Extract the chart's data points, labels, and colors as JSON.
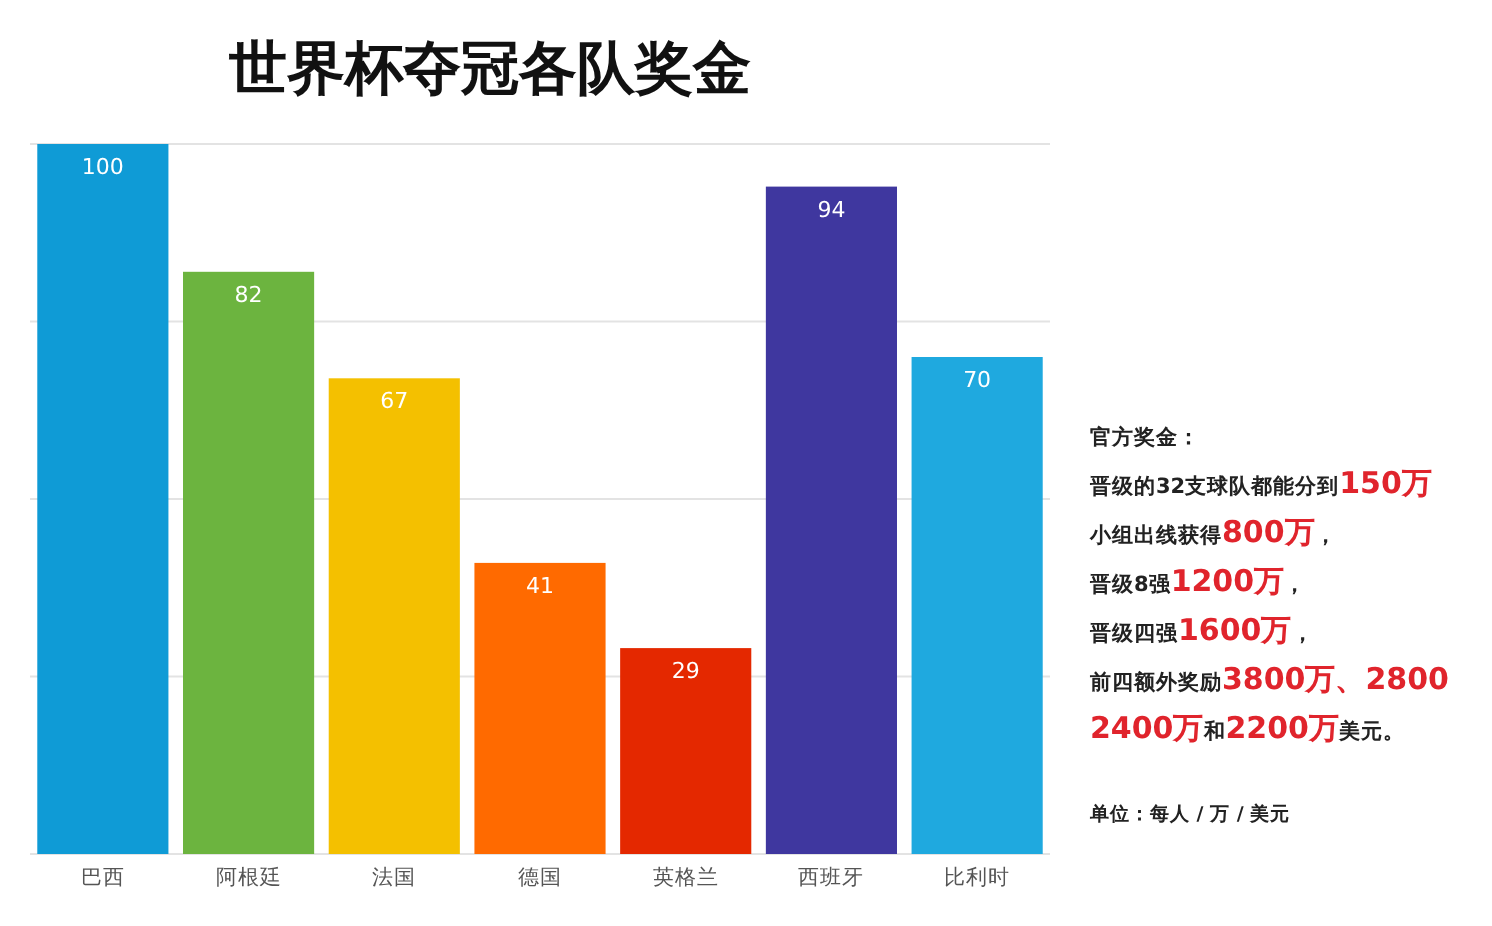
{
  "chart_data": {
    "type": "bar",
    "title": "世界杯夺冠各队奖金",
    "categories": [
      "巴西",
      "阿根廷",
      "法国",
      "德国",
      "英格兰",
      "西班牙",
      "比利时"
    ],
    "values": [
      100,
      82,
      67,
      41,
      29,
      94,
      70
    ],
    "colors": [
      "#0f9bd6",
      "#6cb43f",
      "#f4c000",
      "#ff6a00",
      "#e42800",
      "#3f379f",
      "#1fa9df"
    ],
    "ylim": [
      0,
      100
    ],
    "yticks": [
      {
        "value": 0,
        "label": null
      },
      {
        "value": 25,
        "label": null
      },
      {
        "value": 50,
        "label": null
      },
      {
        "value": 75,
        "label": null
      },
      {
        "value": 100,
        "label": null
      }
    ],
    "grid": "y",
    "tick_labels": "x",
    "data_labels": true,
    "annotations": [
      "官方奖金：",
      "晋级的32支球队都能分到150万",
      "小组出线获得800万，",
      "晋级8强1200万，",
      "晋级四强1600万，",
      "前四额外奖励3800万、2800",
      "2400万和2200万美元。",
      "单位：每人 / 万 / 美元"
    ]
  }
}
